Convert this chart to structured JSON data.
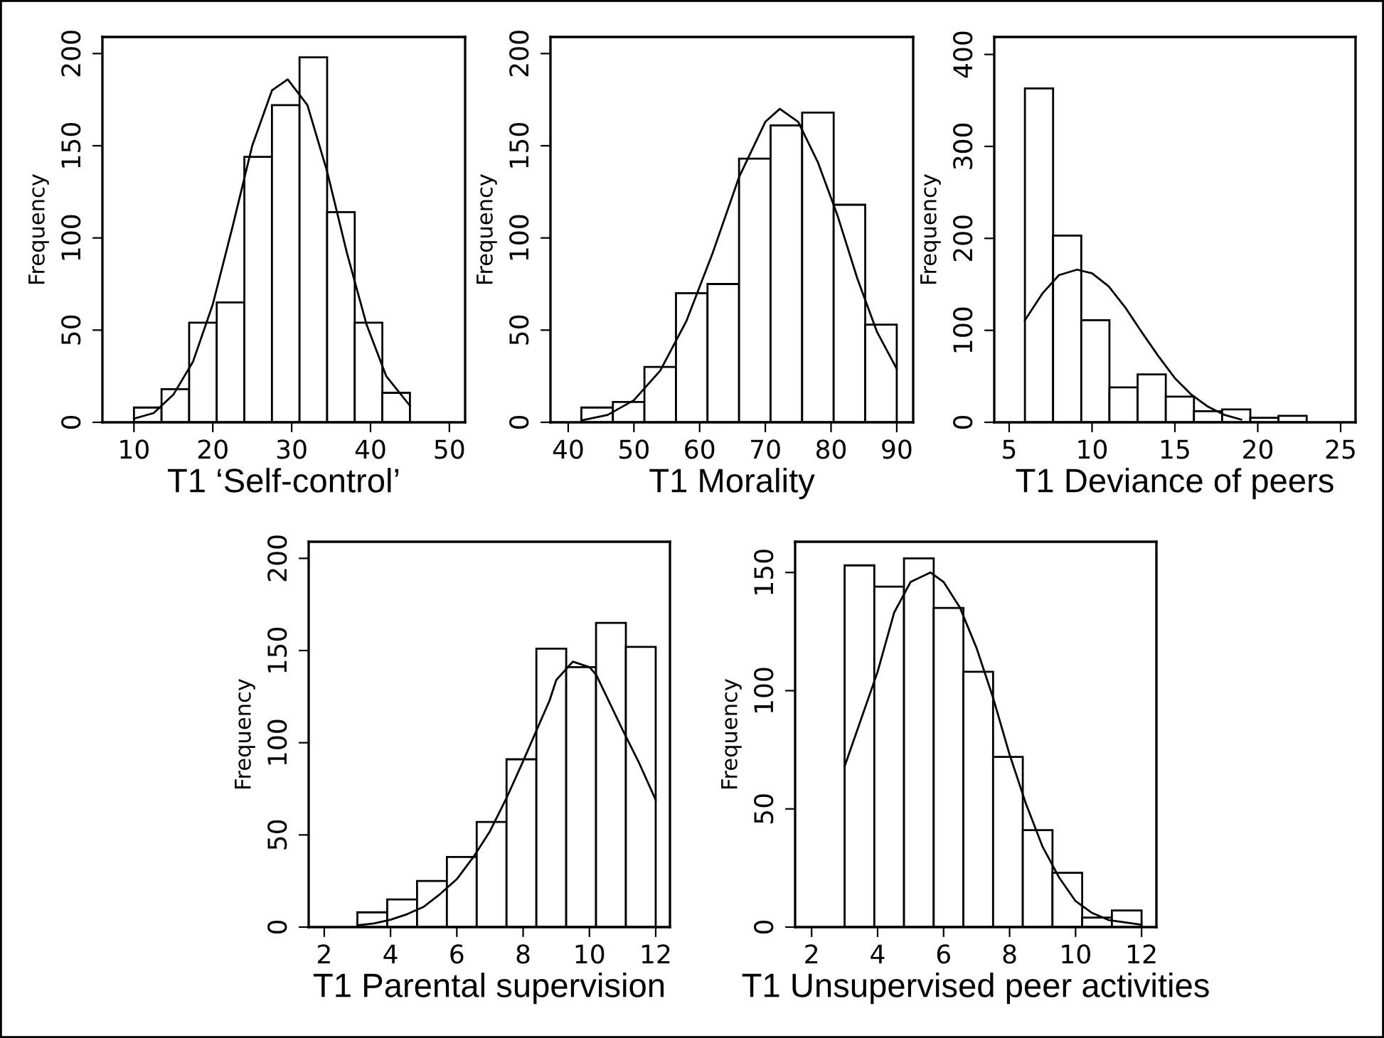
{
  "chart_data": [
    {
      "type": "histogram",
      "xlabel": "T1 ‘Self-control’",
      "ylabel": "Frequency",
      "xlim": [
        6,
        52
      ],
      "xticks": [
        10,
        20,
        30,
        40,
        50
      ],
      "ylim": [
        0,
        209
      ],
      "yticks": [
        0,
        50,
        100,
        150,
        200
      ],
      "grid": false,
      "legend": false,
      "series": [
        {
          "color": "#ffffff",
          "bins": [
            10,
            13.5,
            17,
            20.5,
            24,
            27.5,
            31,
            34.5,
            38,
            41.5,
            45
          ],
          "values": [
            8,
            18,
            54,
            65,
            144,
            172,
            198,
            114,
            54,
            16
          ]
        },
        {
          "type": "line",
          "color": "#000000",
          "x": [
            10,
            12.5,
            15,
            17.5,
            20,
            22.5,
            25,
            27.5,
            29.5,
            32,
            34.5,
            37,
            39.5,
            42,
            45
          ],
          "values": [
            2,
            5,
            15,
            33,
            64,
            106,
            150,
            180,
            186,
            172,
            136,
            92,
            53,
            25,
            9
          ]
        }
      ]
    },
    {
      "type": "histogram",
      "xlabel": "T1 Morality",
      "ylabel": "Frequency",
      "xlim": [
        37.3,
        92.5
      ],
      "xticks": [
        40,
        50,
        60,
        70,
        80,
        90
      ],
      "ylim": [
        0,
        209
      ],
      "yticks": [
        0,
        50,
        100,
        150,
        200
      ],
      "grid": false,
      "legend": false,
      "series": [
        {
          "color": "#ffffff",
          "bins": [
            42,
            46.8,
            51.6,
            56.4,
            61.2,
            66,
            70.8,
            75.6,
            80.4,
            85.2,
            90
          ],
          "values": [
            8,
            11,
            30,
            70,
            75,
            143,
            161,
            168,
            118,
            53
          ]
        },
        {
          "type": "line",
          "color": "#000000",
          "x": [
            42,
            46,
            50,
            54,
            58,
            62,
            66,
            70,
            72.2,
            75,
            78,
            81,
            84,
            87,
            90
          ],
          "values": [
            1,
            4,
            12,
            28,
            55,
            92,
            133,
            163,
            170,
            163,
            141,
            112,
            78,
            49,
            29
          ]
        }
      ]
    },
    {
      "type": "histogram",
      "xlabel": "T1 Deviance of peers",
      "ylabel": "Frequency",
      "xlim": [
        4.1,
        25.9
      ],
      "xticks": [
        5,
        10,
        15,
        20,
        25
      ],
      "ylim": [
        0,
        419
      ],
      "yticks": [
        0,
        100,
        200,
        300,
        400
      ],
      "grid": false,
      "legend": false,
      "series": [
        {
          "color": "#ffffff",
          "bins": [
            5.95,
            7.65,
            9.35,
            11.05,
            12.75,
            14.45,
            16.15,
            17.85,
            19.55,
            21.25,
            22.95
          ],
          "values": [
            363,
            203,
            111,
            38,
            52,
            28,
            12,
            14,
            5,
            7
          ]
        },
        {
          "type": "line",
          "color": "#000000",
          "x": [
            5.95,
            7,
            8,
            9.1,
            10,
            11,
            12,
            13,
            14,
            15,
            16,
            17,
            18,
            19
          ],
          "values": [
            111,
            140,
            160,
            166,
            162,
            148,
            125,
            98,
            72,
            48,
            30,
            17,
            8,
            3
          ]
        }
      ]
    },
    {
      "type": "histogram",
      "xlabel": "T1 Parental supervision",
      "ylabel": "Frequency",
      "xlim": [
        1.53,
        12.43
      ],
      "xticks": [
        2,
        4,
        6,
        8,
        10,
        12
      ],
      "ylim": [
        0,
        209
      ],
      "yticks": [
        0,
        50,
        100,
        150,
        200
      ],
      "grid": false,
      "legend": false,
      "series": [
        {
          "color": "#ffffff",
          "bins": [
            3,
            3.9,
            4.8,
            5.7,
            6.6,
            7.5,
            8.4,
            9.3,
            10.2,
            11.1,
            12
          ],
          "values": [
            8,
            15,
            25,
            38,
            57,
            91,
            151,
            141,
            165,
            152
          ]
        },
        {
          "type": "line",
          "color": "#000000",
          "x": [
            3,
            3.5,
            4,
            4.5,
            5,
            5.5,
            6,
            6.5,
            7,
            7.5,
            8,
            8.8,
            9,
            9.5,
            10,
            10.2,
            11,
            11.5,
            12
          ],
          "values": [
            1,
            2,
            4,
            7,
            11,
            18,
            26,
            38,
            52,
            70,
            90,
            123,
            134,
            144,
            141,
            137,
            107,
            89,
            69
          ]
        }
      ]
    },
    {
      "type": "histogram",
      "xlabel": "T1 Unsupervised peer activities",
      "ylabel": "Frequency",
      "xlim": [
        1.5,
        12.45
      ],
      "xticks": [
        2,
        4,
        6,
        8,
        10,
        12
      ],
      "ylim": [
        0,
        163
      ],
      "yticks": [
        0,
        50,
        100,
        150
      ],
      "grid": false,
      "legend": false,
      "series": [
        {
          "color": "#ffffff",
          "bins": [
            3,
            3.9,
            4.8,
            5.7,
            6.6,
            7.5,
            8.4,
            9.3,
            10.2,
            11.1,
            12
          ],
          "values": [
            153,
            144,
            156,
            135,
            108,
            72,
            41,
            23,
            4,
            7
          ]
        },
        {
          "type": "line",
          "color": "#000000",
          "x": [
            3,
            4,
            4.5,
            5,
            5.6,
            6,
            6.5,
            7,
            7.5,
            8,
            8.5,
            9,
            9.5,
            10,
            10.5,
            11,
            12
          ],
          "values": [
            68,
            108,
            133,
            146,
            150,
            146,
            135,
            118,
            97,
            73,
            52,
            34,
            21,
            11,
            6,
            3,
            1
          ]
        }
      ]
    }
  ]
}
